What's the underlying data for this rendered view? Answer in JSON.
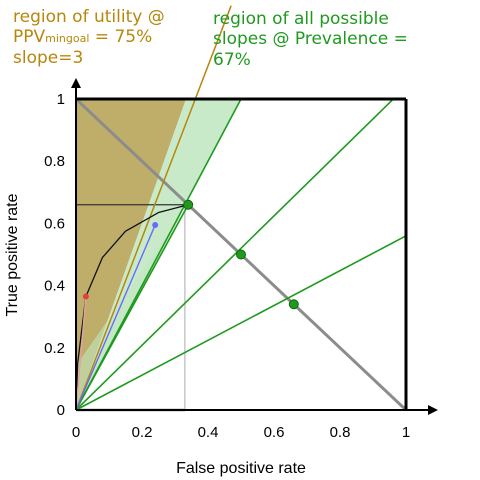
{
  "colors": {
    "utility": "#b8860b",
    "green": "#1f9a1f",
    "utility_fill": "#b8a55a",
    "green_fill": "#bfe6bf",
    "axis": "#000000",
    "diagonal": "#8c8c8c",
    "curve": "#111111",
    "point_red": "#e04040",
    "point_blue": "#6a6aff"
  },
  "annotations": {
    "utility": {
      "line1": "region of utility @",
      "line2_main": "PPV",
      "line2_sub": "mingoal",
      "line2_tail": " = 75%",
      "line3": "slope=3"
    },
    "slopes": {
      "line1": "region of all possible",
      "line2": "slopes @ Prevalence =",
      "line3": "67%"
    }
  },
  "chart_data": {
    "type": "line",
    "xlabel": "False positive rate",
    "ylabel": "True positive rate",
    "xlim": [
      0,
      1
    ],
    "ylim": [
      0,
      1
    ],
    "x_ticks": [
      "0",
      "0.2",
      "0.4",
      "0.6",
      "0.8",
      "1"
    ],
    "y_ticks": [
      "0",
      "0.2",
      "0.4",
      "0.6",
      "0.8",
      "1"
    ],
    "utility_slope": 3,
    "slope_lines": [
      2,
      1.04,
      0.56,
      3
    ],
    "anti_diagonal": [
      [
        0,
        1
      ],
      [
        1,
        0
      ]
    ],
    "green_points": [
      [
        0.34,
        0.66
      ],
      [
        0.5,
        0.5
      ],
      [
        0.66,
        0.34
      ]
    ],
    "roc_curve": [
      [
        0,
        0
      ],
      [
        0.005,
        0.15
      ],
      [
        0.03,
        0.365
      ],
      [
        0.08,
        0.49
      ],
      [
        0.15,
        0.575
      ],
      [
        0.25,
        0.635
      ],
      [
        0.34,
        0.66
      ]
    ],
    "marked_points": [
      [
        0.03,
        0.365
      ],
      [
        0.24,
        0.595
      ]
    ],
    "guide_box": [
      0.33,
      0.66
    ]
  }
}
